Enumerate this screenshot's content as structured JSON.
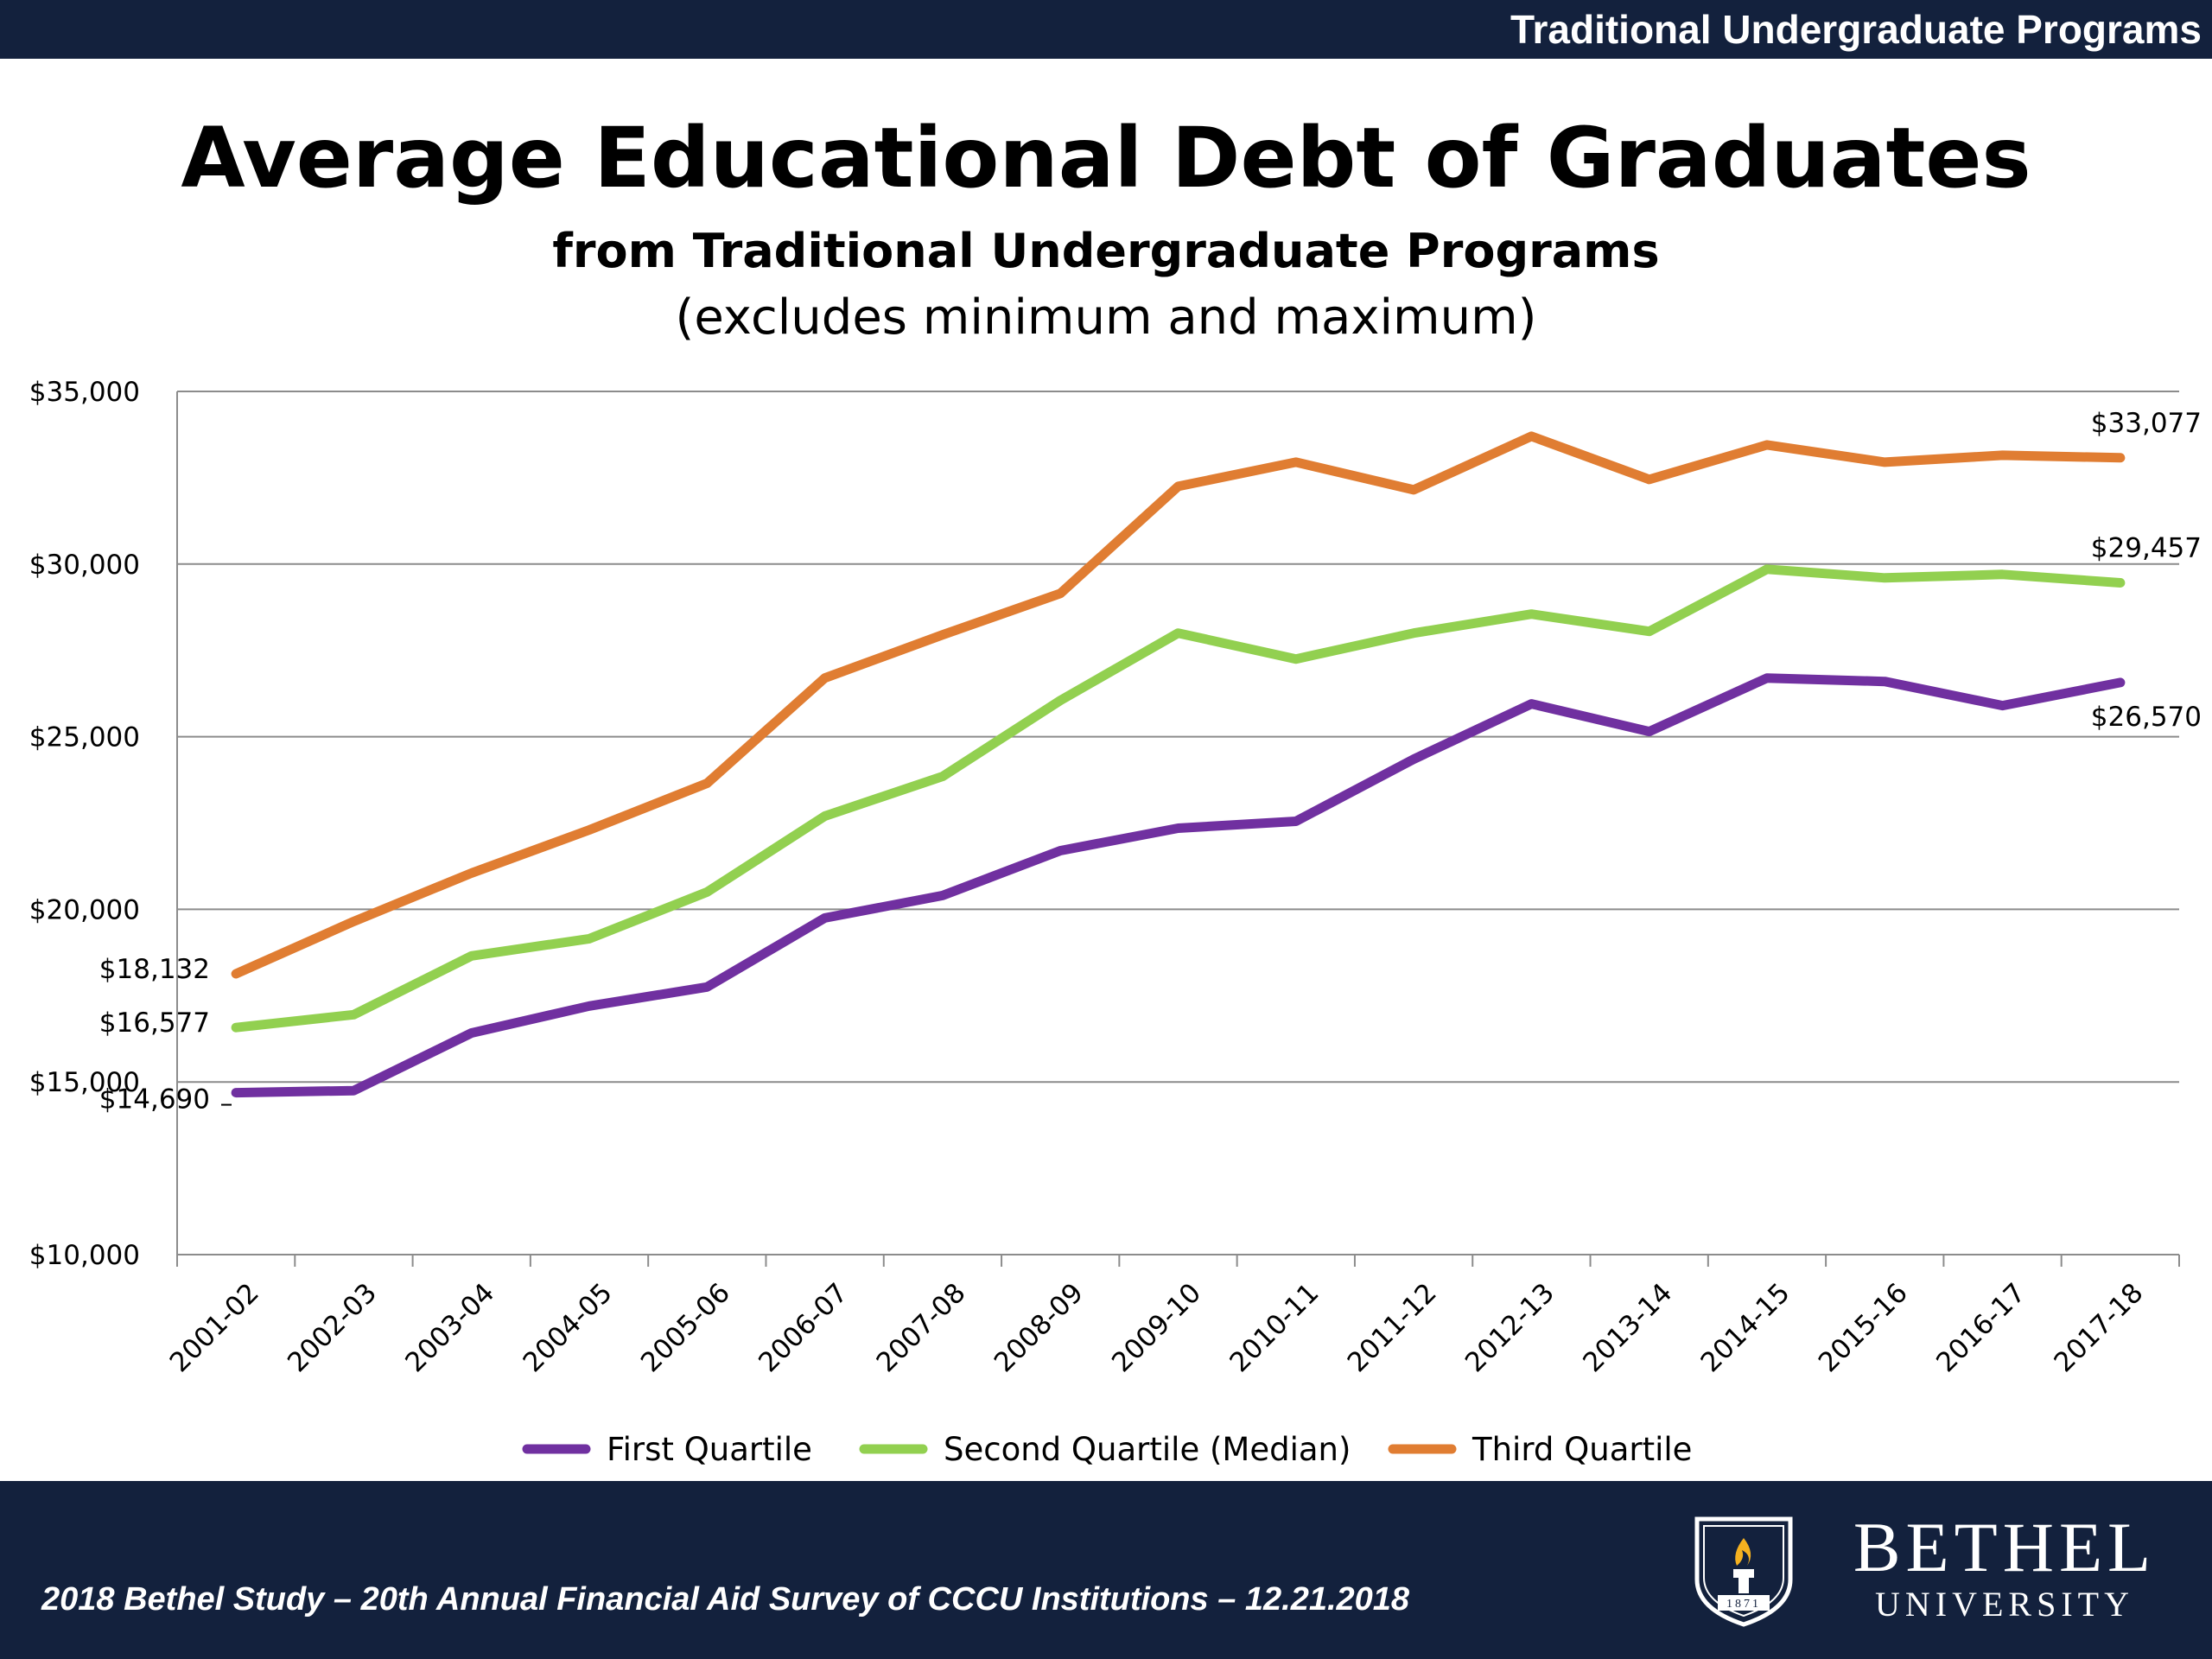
{
  "header": {
    "section_title": "Traditional Undergraduate Programs"
  },
  "title": "Average Educational Debt of Graduates",
  "subtitle": "from Traditional Undergraduate Programs",
  "note": "(excludes minimum and maximum)",
  "footer": {
    "citation": "2018 Bethel Study – 20th Annual Financial Aid Survey of CCCU Institutions – 12.21.2018",
    "logo_name": "BETHEL",
    "logo_sub": "UNIVERSITY",
    "logo_year": "1871"
  },
  "colors": {
    "first": "#7030a0",
    "second": "#92d050",
    "third": "#e07d32",
    "bar": "#13213d"
  },
  "chart_data": {
    "type": "line",
    "title": "Average Educational Debt of Graduates",
    "subtitle": "from Traditional Undergraduate Programs",
    "xlabel": "",
    "ylabel": "",
    "ylim": [
      10000,
      35000
    ],
    "yticks": [
      10000,
      15000,
      20000,
      25000,
      30000,
      35000
    ],
    "ytick_labels": [
      "$10,000",
      "$15,000",
      "$20,000",
      "$25,000",
      "$30,000",
      "$35,000"
    ],
    "grid": true,
    "legend_position": "bottom",
    "categories": [
      "2001-02",
      "2002-03",
      "2003-04",
      "2004-05",
      "2005-06",
      "2006-07",
      "2007-08",
      "2008-09",
      "2009-10",
      "2010-11",
      "2011-12",
      "2012-13",
      "2013-14",
      "2014-15",
      "2015-16",
      "2016-17",
      "2017-18"
    ],
    "series": [
      {
        "name": "First Quartile",
        "color": "#7030a0",
        "values": [
          14690,
          14750,
          16420,
          17200,
          17750,
          19750,
          20400,
          21700,
          22350,
          22550,
          24350,
          25950,
          25150,
          26700,
          26600,
          25900,
          26570
        ],
        "end_labels": [
          "$14,690",
          "$26,570"
        ]
      },
      {
        "name": "Second Quartile (Median)",
        "color": "#92d050",
        "values": [
          16577,
          16950,
          18650,
          19150,
          20500,
          22700,
          23850,
          26050,
          28000,
          27250,
          28000,
          28550,
          28050,
          29850,
          29600,
          29700,
          29457
        ],
        "end_labels": [
          "$16,577",
          "$29,457"
        ]
      },
      {
        "name": "Third Quartile",
        "color": "#e07d32",
        "values": [
          18132,
          19650,
          21050,
          22300,
          23650,
          26700,
          27950,
          29150,
          32250,
          32950,
          32150,
          33700,
          32450,
          33450,
          32950,
          33150,
          33077
        ],
        "end_labels": [
          "$18,132",
          "$33,077"
        ]
      }
    ]
  }
}
